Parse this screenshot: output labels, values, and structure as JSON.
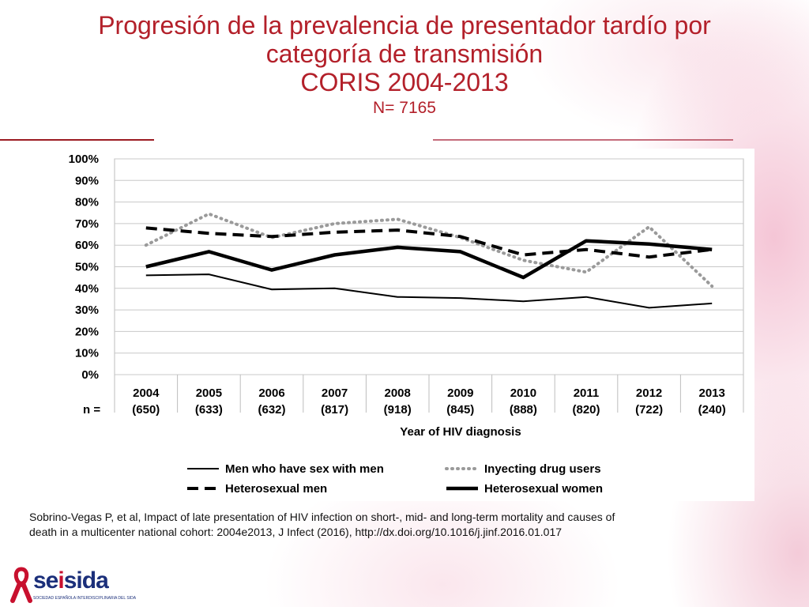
{
  "slide": {
    "title_line1": "Progresión de la prevalencia de presentador tardío por",
    "title_line2": "categoría de transmisión",
    "title_line3": "CORIS  2004-2013",
    "subtitle": "N= 7165",
    "title_color": "#b3202a",
    "citation_line1": "Sobrino-Vegas P, et al, Impact of late presentation of HIV infection on short-, mid- and long-term mortality and causes of",
    "citation_line2": "death in a multicenter national cohort: 2004e2013, J Infect (2016), http://dx.doi.org/10.1016/j.jinf.2016.01.017"
  },
  "logo": {
    "text_part1": "se",
    "text_part2": "i",
    "text_part3": "sida",
    "subtext": "SOCIEDAD ESPAÑOLA INTERDISCIPLINARIA DEL SIDA",
    "icon": "red-ribbon-icon",
    "brand_color": "#1b2f7a",
    "ribbon_color": "#c8102e"
  },
  "chart_data": {
    "type": "line",
    "categories": [
      "2004",
      "2005",
      "2006",
      "2007",
      "2008",
      "2009",
      "2010",
      "2011",
      "2012",
      "2013"
    ],
    "category_n": [
      "(650)",
      "(633)",
      "(632)",
      "(817)",
      "(918)",
      "(845)",
      "(888)",
      "(820)",
      "(722)",
      "(240)"
    ],
    "n_prefix": "n =",
    "xlabel": "Year of HIV diagnosis",
    "ylabel": "",
    "ylim": [
      0,
      100
    ],
    "yticks": [
      "0%",
      "10%",
      "20%",
      "30%",
      "40%",
      "50%",
      "60%",
      "70%",
      "80%",
      "90%",
      "100%"
    ],
    "grid": true,
    "legend_position": "bottom",
    "series": [
      {
        "name": "Men who have sex with men",
        "style": "solid-thin",
        "color": "#000000",
        "values": [
          46,
          46.5,
          39.5,
          40,
          36,
          35.5,
          34,
          36,
          31,
          33
        ]
      },
      {
        "name": "Inyecting drug users",
        "style": "dotted",
        "color": "#9a9a9a",
        "values": [
          60,
          74.5,
          63.5,
          70,
          72,
          63.5,
          53,
          47.5,
          68.5,
          41
        ]
      },
      {
        "name": "Heterosexual men",
        "style": "dashed",
        "color": "#000000",
        "values": [
          68,
          65.5,
          64,
          66,
          67,
          64,
          55.5,
          58,
          54.5,
          58
        ]
      },
      {
        "name": "Heterosexual women",
        "style": "solid-thick",
        "color": "#000000",
        "values": [
          50,
          57,
          48.5,
          55.5,
          59,
          57,
          45,
          62,
          60.5,
          58
        ]
      }
    ]
  }
}
